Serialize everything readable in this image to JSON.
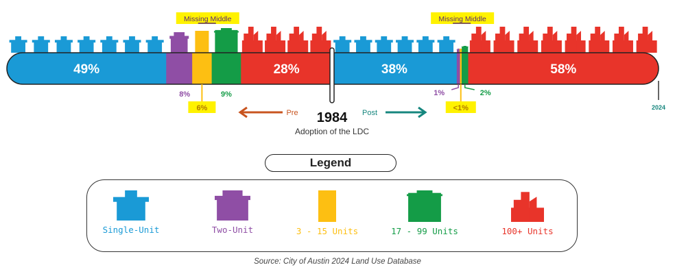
{
  "chart_data": {
    "type": "stacked-proportion-bar",
    "periods": [
      {
        "id": "pre",
        "segments": [
          {
            "category": "Single-Unit",
            "value": 49,
            "label": "49%"
          },
          {
            "category": "Two-Unit",
            "value": 8,
            "label": "8%"
          },
          {
            "category": "3 - 15 Units",
            "value": 6,
            "label": "6%"
          },
          {
            "category": "17 - 99 Units",
            "value": 9,
            "label": "9%"
          },
          {
            "category": "100+ Units",
            "value": 28,
            "label": "28%"
          }
        ]
      },
      {
        "id": "post",
        "segments": [
          {
            "category": "Single-Unit",
            "value": 38,
            "label": "38%"
          },
          {
            "category": "Two-Unit",
            "value": 1,
            "label": "1%"
          },
          {
            "category": "3 - 15 Units",
            "value": 0.5,
            "label": "<1%"
          },
          {
            "category": "17 - 99 Units",
            "value": 2,
            "label": "2%"
          },
          {
            "category": "100+ Units",
            "value": 58,
            "label": "58%"
          }
        ]
      }
    ],
    "divider_year": "1984",
    "divider_caption": "Adoption of the LDC",
    "pre_label": "Pre",
    "post_label": "Post",
    "end_year": "2024",
    "missing_middle_label": "Missing Middle",
    "legend_title": "Legend",
    "legend": [
      {
        "category": "Single-Unit",
        "label": "Single-Unit"
      },
      {
        "category": "Two-Unit",
        "label": "Two-Unit"
      },
      {
        "category": "3 - 15 Units",
        "label": "3 - 15 Units"
      },
      {
        "category": "17 - 99 Units",
        "label": "17 - 99 Units"
      },
      {
        "category": "100+ Units",
        "label": "100+ Units"
      }
    ],
    "source": "Source: City of Austin 2024 Land Use Database"
  },
  "colors": {
    "Single-Unit": "#1a9ad6",
    "Two-Unit": "#8f4ea5",
    "3 - 15 Units": "#fdbf12",
    "17 - 99 Units": "#149c47",
    "100+ Units": "#e8342a",
    "pre_arrow": "#c8541f",
    "post_arrow": "#16867e",
    "highlight": "#fff200"
  },
  "icons": {
    "Single-Unit": "house-icon",
    "Two-Unit": "duplex-icon",
    "3 - 15 Units": "small-apartment-icon",
    "17 - 99 Units": "mid-rise-icon",
    "100+ Units": "high-rise-icon"
  }
}
